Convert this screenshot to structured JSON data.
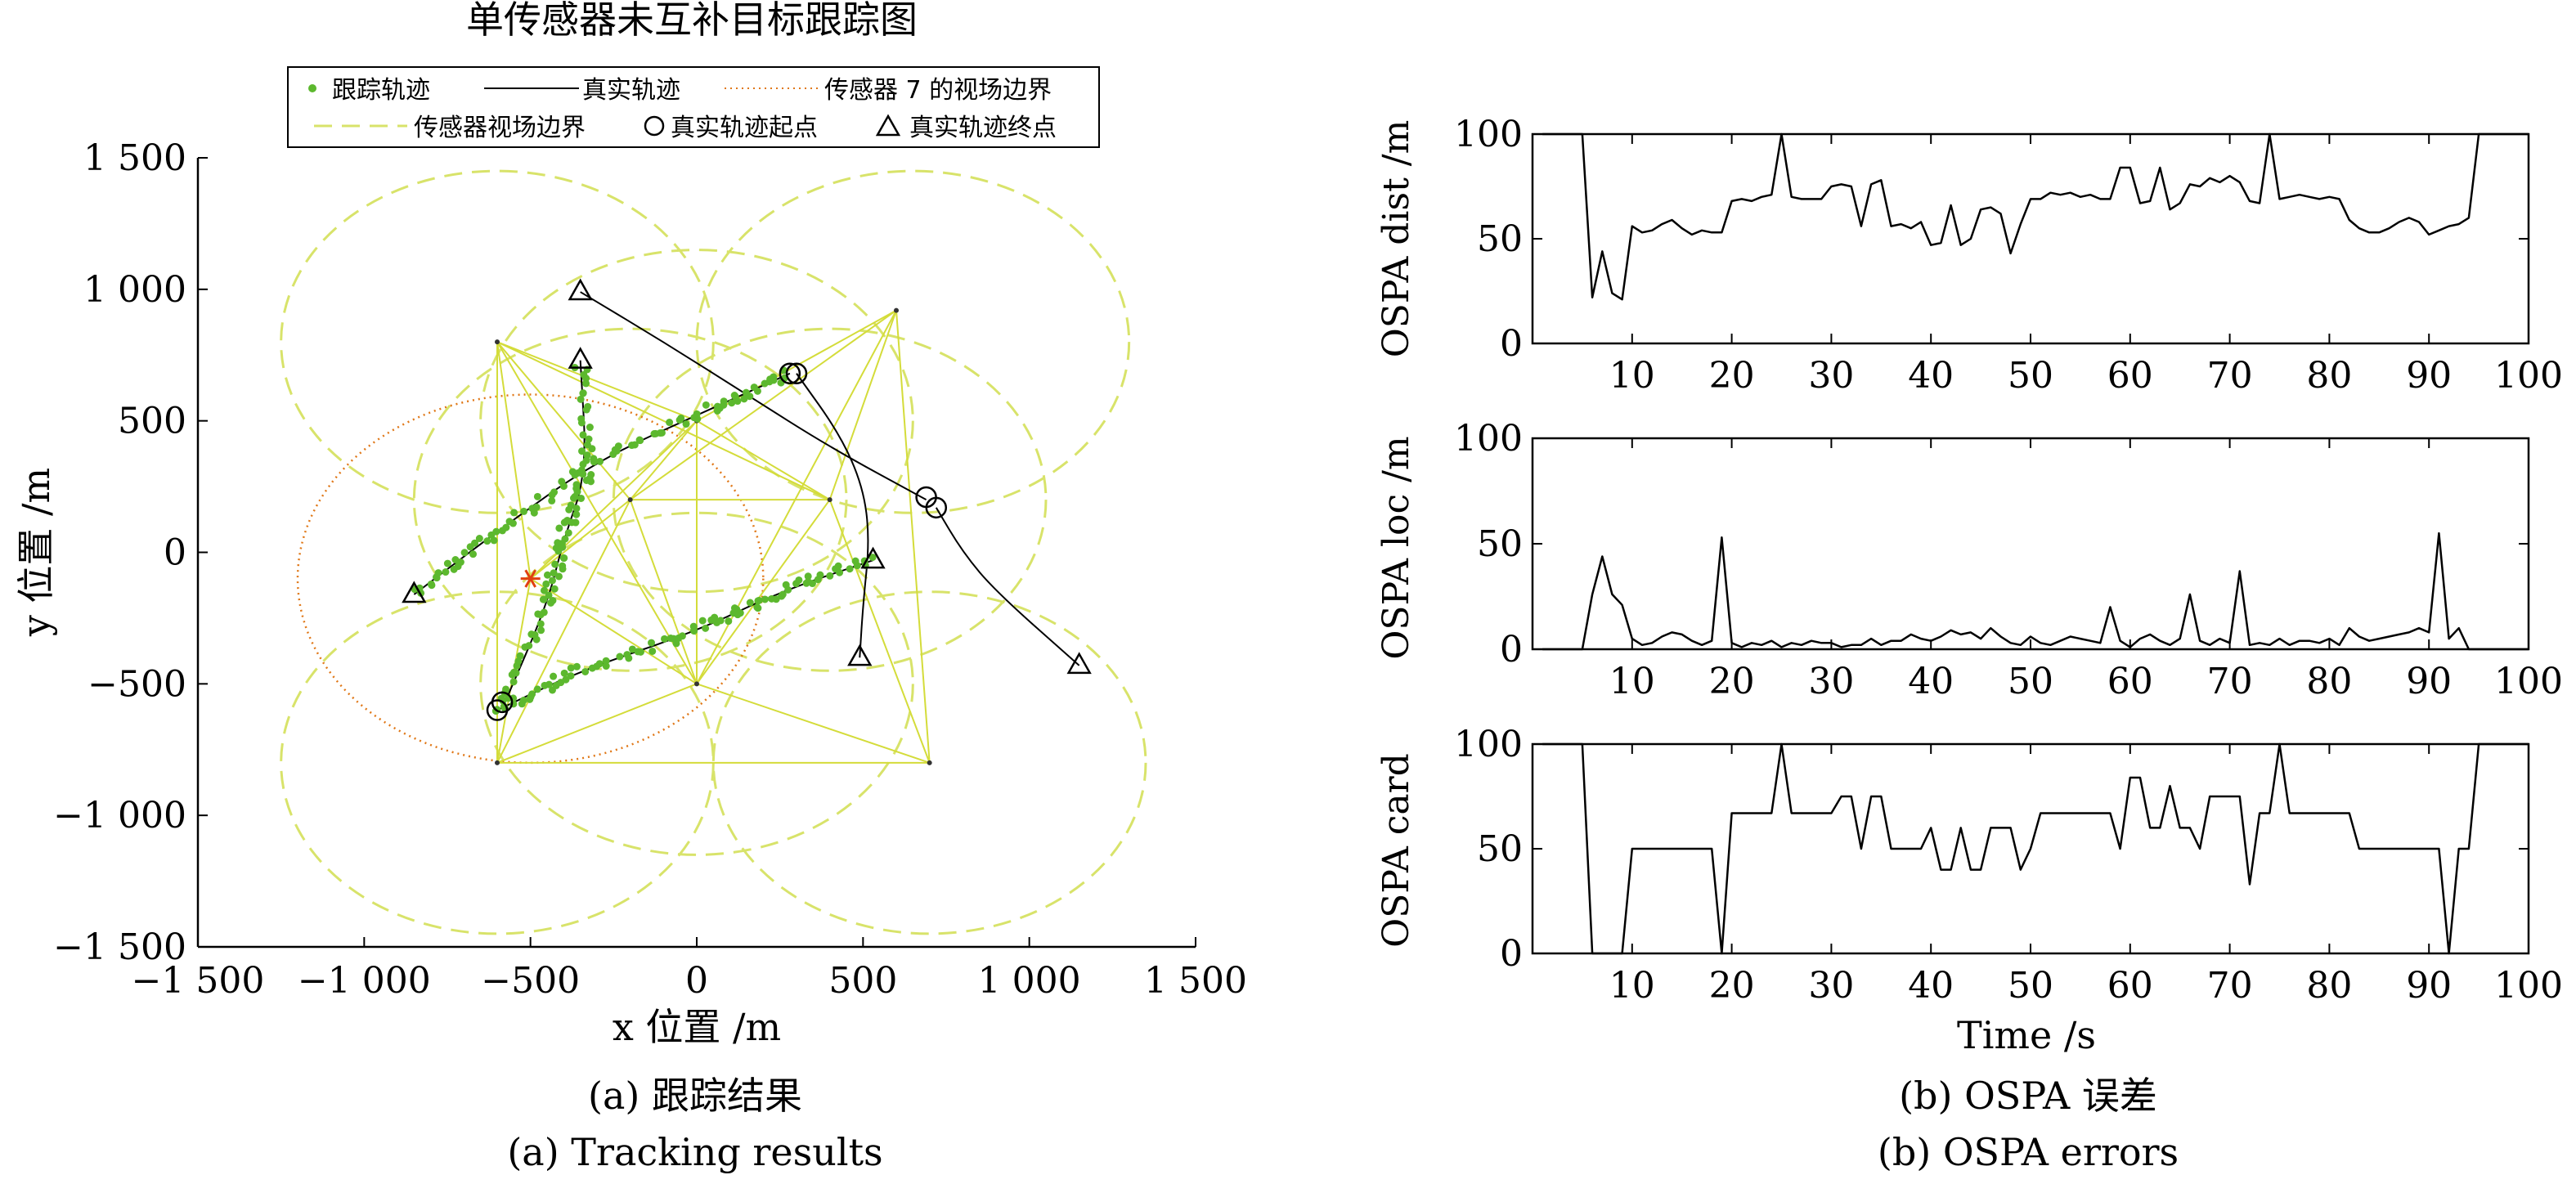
{
  "left_panel": {
    "title": "单传感器未互补目标跟踪图",
    "caption_cn": "(a) 跟踪结果",
    "caption_en": "(a) Tracking results"
  },
  "right_panel": {
    "caption_cn": "(b) OSPA 误差",
    "caption_en": "(b) OSPA errors"
  },
  "colors": {
    "track": "#5cb82e",
    "truth": "#000000",
    "fov": "#d8e36a",
    "sensor7_fov": "#e07818",
    "sensor_links": "#d4dc3a",
    "sensor_marker": "#e04010"
  },
  "chart_data": [
    {
      "type": "scatter",
      "title": "单传感器未互补目标跟踪图",
      "xlabel": "x 位置 /m",
      "ylabel": "y 位置 /m",
      "xlim": [
        -1500,
        1500
      ],
      "ylim": [
        -1500,
        1500
      ],
      "xticks": [
        -1500,
        -1000,
        -500,
        0,
        500,
        1000,
        1500
      ],
      "xtick_labels": [
        "−1 500",
        "−1 000",
        "−500",
        "0",
        "500",
        "1 000",
        "1 500"
      ],
      "yticks": [
        -1500,
        -1000,
        -500,
        0,
        500,
        1000,
        1500
      ],
      "ytick_labels": [
        "−1 500",
        "−1 000",
        "−500",
        "0",
        "500",
        "1 000",
        "1 500"
      ],
      "legend_position": "top",
      "legend": [
        {
          "label": "跟踪轨迹",
          "style": "green-dots"
        },
        {
          "label": "真实轨迹",
          "style": "black-solid"
        },
        {
          "label": "传感器 7 的视场边界",
          "style": "orange-dotted"
        },
        {
          "label": "传感器视场边界",
          "style": "yellow-dashed"
        },
        {
          "label": "真实轨迹起点",
          "style": "circle"
        },
        {
          "label": "真实轨迹终点",
          "style": "triangle"
        }
      ],
      "sensors": [
        {
          "x": -600,
          "y": 800
        },
        {
          "x": 600,
          "y": 920
        },
        {
          "x": 0,
          "y": 500
        },
        {
          "x": -200,
          "y": 200
        },
        {
          "x": -500,
          "y": -100
        },
        {
          "x": 0,
          "y": -500
        },
        {
          "x": -600,
          "y": -800
        },
        {
          "x": 700,
          "y": -800
        },
        {
          "x": 400,
          "y": 200
        }
      ],
      "sensor7": {
        "x": -500,
        "y": -100,
        "rx": 700,
        "ry": 700
      },
      "fov_circles": [
        {
          "x": -600,
          "y": 800,
          "r": 650
        },
        {
          "x": 650,
          "y": 800,
          "r": 650
        },
        {
          "x": 0,
          "y": 500,
          "r": 650
        },
        {
          "x": -200,
          "y": 200,
          "r": 650
        },
        {
          "x": 400,
          "y": 200,
          "r": 650
        },
        {
          "x": -600,
          "y": -800,
          "r": 650
        },
        {
          "x": 700,
          "y": -800,
          "r": 650
        },
        {
          "x": 0,
          "y": -500,
          "r": 650
        }
      ],
      "true_tracks": [
        {
          "points": [
            [
              -600,
              -600
            ],
            [
              -350,
              -450
            ],
            [
              0,
              -300
            ],
            [
              250,
              -150
            ],
            [
              530,
              -30
            ]
          ]
        },
        {
          "points": [
            [
              -850,
              -160
            ],
            [
              -600,
              80
            ],
            [
              -300,
              350
            ],
            [
              50,
              550
            ],
            [
              280,
              680
            ]
          ]
        },
        {
          "points": [
            [
              300,
              680
            ],
            [
              430,
              450
            ],
            [
              500,
              250
            ],
            [
              520,
              50
            ],
            [
              500,
              -200
            ],
            [
              490,
              -400
            ]
          ]
        },
        {
          "points": [
            [
              -350,
              990
            ],
            [
              -100,
              800
            ],
            [
              150,
              600
            ],
            [
              400,
              400
            ],
            [
              690,
              200
            ]
          ]
        },
        {
          "points": [
            [
              720,
              170
            ],
            [
              800,
              0
            ],
            [
              900,
              -150
            ],
            [
              1150,
              -430
            ]
          ]
        },
        {
          "points": [
            [
              -580,
              -580
            ],
            [
              -450,
              -200
            ],
            [
              -400,
              50
            ],
            [
              -330,
              300
            ],
            [
              -350,
              730
            ]
          ]
        }
      ],
      "start_points": [
        [
          -600,
          -600
        ],
        [
          -585,
          -570
        ],
        [
          280,
          680
        ],
        [
          300,
          680
        ],
        [
          690,
          210
        ],
        [
          720,
          170
        ]
      ],
      "end_points": [
        [
          -350,
          990
        ],
        [
          -350,
          730
        ],
        [
          -850,
          -160
        ],
        [
          530,
          -30
        ],
        [
          490,
          -400
        ],
        [
          1150,
          -430
        ]
      ]
    },
    {
      "type": "line",
      "ylabel": "OSPA dist /m",
      "xlim": [
        0,
        100
      ],
      "ylim": [
        0,
        100
      ],
      "xticks": [
        10,
        20,
        30,
        40,
        50,
        60,
        70,
        80,
        90,
        100
      ],
      "yticks": [
        0,
        50,
        100
      ],
      "x": [
        1,
        2,
        3,
        4,
        5,
        6,
        7,
        8,
        9,
        10,
        11,
        12,
        13,
        14,
        15,
        16,
        17,
        18,
        19,
        20,
        21,
        22,
        23,
        24,
        25,
        26,
        27,
        28,
        29,
        30,
        31,
        32,
        33,
        34,
        35,
        36,
        37,
        38,
        39,
        40,
        41,
        42,
        43,
        44,
        45,
        46,
        47,
        48,
        49,
        50,
        51,
        52,
        53,
        54,
        55,
        56,
        57,
        58,
        59,
        60,
        61,
        62,
        63,
        64,
        65,
        66,
        67,
        68,
        69,
        70,
        71,
        72,
        73,
        74,
        75,
        76,
        77,
        78,
        79,
        80,
        81,
        82,
        83,
        84,
        85,
        86,
        87,
        88,
        89,
        90,
        91,
        92,
        93,
        94,
        95,
        96,
        97,
        98,
        99,
        100
      ],
      "values": [
        100,
        100,
        100,
        100,
        100,
        22,
        44,
        24,
        21,
        56,
        53,
        54,
        57,
        59,
        55,
        52,
        54,
        53,
        53,
        68,
        69,
        68,
        70,
        71,
        100,
        70,
        69,
        69,
        69,
        75,
        76,
        75,
        56,
        76,
        78,
        56,
        57,
        55,
        58,
        47,
        48,
        66,
        47,
        50,
        64,
        65,
        62,
        43,
        57,
        69,
        69,
        72,
        71,
        72,
        70,
        71,
        69,
        69,
        84,
        84,
        67,
        68,
        84,
        64,
        67,
        76,
        75,
        79,
        77,
        80,
        77,
        68,
        67,
        100,
        69,
        70,
        71,
        70,
        69,
        70,
        69,
        59,
        55,
        53,
        53,
        55,
        58,
        60,
        58,
        52,
        54,
        56,
        57,
        60,
        100,
        100,
        100,
        100,
        100,
        100
      ]
    },
    {
      "type": "line",
      "ylabel": "OSPA loc /m",
      "xlim": [
        0,
        100
      ],
      "ylim": [
        0,
        100
      ],
      "xticks": [
        10,
        20,
        30,
        40,
        50,
        60,
        70,
        80,
        90,
        100
      ],
      "yticks": [
        0,
        50,
        100
      ],
      "x": [
        1,
        2,
        3,
        4,
        5,
        6,
        7,
        8,
        9,
        10,
        11,
        12,
        13,
        14,
        15,
        16,
        17,
        18,
        19,
        20,
        21,
        22,
        23,
        24,
        25,
        26,
        27,
        28,
        29,
        30,
        31,
        32,
        33,
        34,
        35,
        36,
        37,
        38,
        39,
        40,
        41,
        42,
        43,
        44,
        45,
        46,
        47,
        48,
        49,
        50,
        51,
        52,
        53,
        54,
        55,
        56,
        57,
        58,
        59,
        60,
        61,
        62,
        63,
        64,
        65,
        66,
        67,
        68,
        69,
        70,
        71,
        72,
        73,
        74,
        75,
        76,
        77,
        78,
        79,
        80,
        81,
        82,
        83,
        84,
        85,
        86,
        87,
        88,
        89,
        90,
        91,
        92,
        93,
        94,
        95,
        96,
        97,
        98,
        99,
        100
      ],
      "values": [
        0,
        0,
        0,
        0,
        0,
        26,
        44,
        26,
        21,
        5,
        2,
        3,
        6,
        8,
        7,
        4,
        2,
        4,
        53,
        3,
        1,
        3,
        2,
        4,
        1,
        3,
        2,
        4,
        3,
        3,
        1,
        2,
        2,
        5,
        2,
        4,
        4,
        7,
        5,
        4,
        6,
        9,
        7,
        8,
        5,
        10,
        6,
        3,
        2,
        6,
        3,
        2,
        4,
        6,
        5,
        4,
        3,
        20,
        4,
        1,
        5,
        7,
        4,
        2,
        5,
        26,
        4,
        2,
        5,
        3,
        37,
        2,
        3,
        2,
        5,
        2,
        4,
        4,
        3,
        5,
        2,
        10,
        6,
        4,
        5,
        6,
        7,
        8,
        10,
        8,
        55,
        5,
        10,
        0,
        0,
        0,
        0,
        0,
        0,
        0
      ]
    },
    {
      "type": "line",
      "ylabel": "OSPA card",
      "xlabel": "Time /s",
      "xlim": [
        0,
        100
      ],
      "ylim": [
        0,
        100
      ],
      "xticks": [
        10,
        20,
        30,
        40,
        50,
        60,
        70,
        80,
        90,
        100
      ],
      "yticks": [
        0,
        50,
        100
      ],
      "x": [
        1,
        2,
        3,
        4,
        5,
        6,
        7,
        8,
        9,
        10,
        11,
        12,
        13,
        14,
        15,
        16,
        17,
        18,
        19,
        20,
        21,
        22,
        23,
        24,
        25,
        26,
        27,
        28,
        29,
        30,
        31,
        32,
        33,
        34,
        35,
        36,
        37,
        38,
        39,
        40,
        41,
        42,
        43,
        44,
        45,
        46,
        47,
        48,
        49,
        50,
        51,
        52,
        53,
        54,
        55,
        56,
        57,
        58,
        59,
        60,
        61,
        62,
        63,
        64,
        65,
        66,
        67,
        68,
        69,
        70,
        71,
        72,
        73,
        74,
        75,
        76,
        77,
        78,
        79,
        80,
        81,
        82,
        83,
        84,
        85,
        86,
        87,
        88,
        89,
        90,
        91,
        92,
        93,
        94,
        95,
        96,
        97,
        98,
        99,
        100
      ],
      "values": [
        100,
        100,
        100,
        100,
        100,
        0,
        0,
        0,
        0,
        50,
        50,
        50,
        50,
        50,
        50,
        50,
        50,
        50,
        0,
        67,
        67,
        67,
        67,
        67,
        100,
        67,
        67,
        67,
        67,
        67,
        75,
        75,
        50,
        75,
        75,
        50,
        50,
        50,
        50,
        60,
        40,
        40,
        60,
        40,
        40,
        60,
        60,
        60,
        40,
        50,
        67,
        67,
        67,
        67,
        67,
        67,
        67,
        67,
        50,
        84,
        84,
        60,
        60,
        80,
        60,
        60,
        50,
        75,
        75,
        75,
        75,
        33,
        67,
        67,
        100,
        67,
        67,
        67,
        67,
        67,
        67,
        67,
        50,
        50,
        50,
        50,
        50,
        50,
        50,
        50,
        50,
        0,
        50,
        50,
        100,
        100,
        100,
        100,
        100,
        100
      ]
    }
  ]
}
